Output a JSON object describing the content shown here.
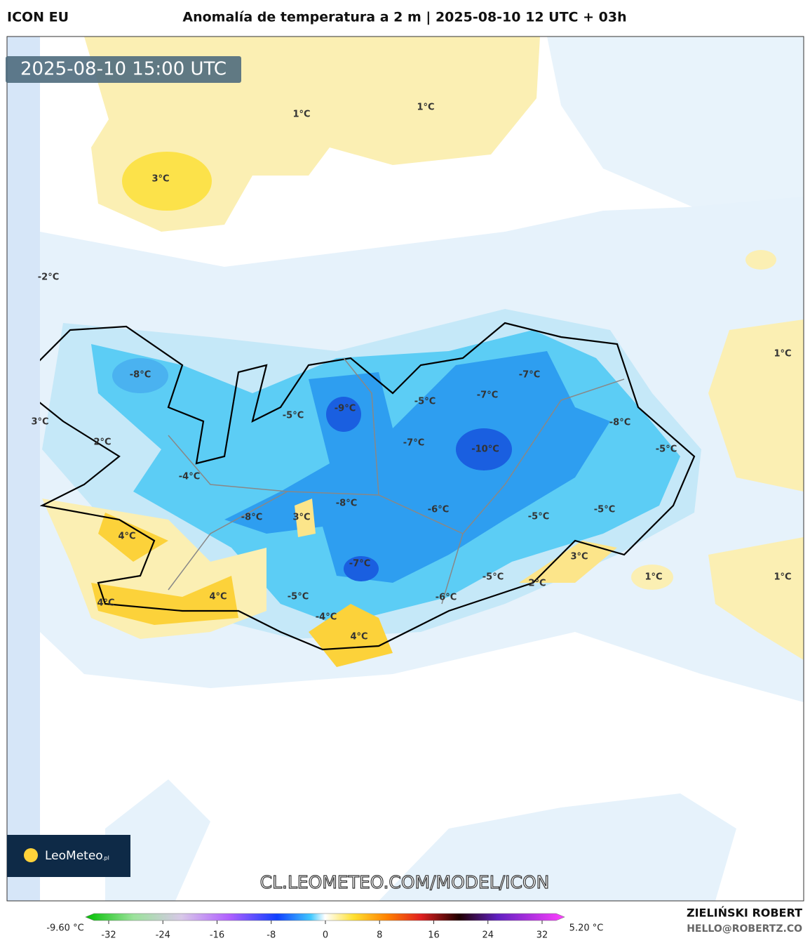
{
  "header": {
    "model": "ICON EU",
    "title": "Anomalía de temperatura a 2 m | 2025-08-10 12 UTC + 03h"
  },
  "timestamp": "2025-08-10 15:00 UTC",
  "map_labels": [
    "1°C",
    "1°C",
    "3°C",
    "-2°C",
    "1°C",
    "-8°C",
    "-7°C",
    "-5°C",
    "-7°C",
    "-9°C",
    "-5°C",
    "3°C",
    "-8°C",
    "2°C",
    "-7°C",
    "-10°C",
    "-5°C",
    "-4°C",
    "-8°C",
    "-6°C",
    "-5°C",
    "-8°C",
    "3°C",
    "-5°C",
    "4°C",
    "3°C",
    "-7°C",
    "1°C",
    "1°C",
    "-5°C",
    "2°C",
    "-5°C",
    "4°C",
    "-6°C",
    "4°C",
    "-4°C",
    "4°C"
  ],
  "logo": {
    "name": "LeoMeteo",
    "suffix": ".pl"
  },
  "watermark": "CL.LEOMETEO.COM/MODEL/ICON",
  "colorbar": {
    "min_label": "-9.60 °C",
    "max_label": "5.20 °C",
    "ticks": [
      -32,
      -24,
      -16,
      -8,
      0,
      8,
      16,
      24,
      32
    ]
  },
  "credits": {
    "author": "ZIELIŃSKI ROBERT",
    "contact": "HELLO@ROBERTZ.CO"
  }
}
